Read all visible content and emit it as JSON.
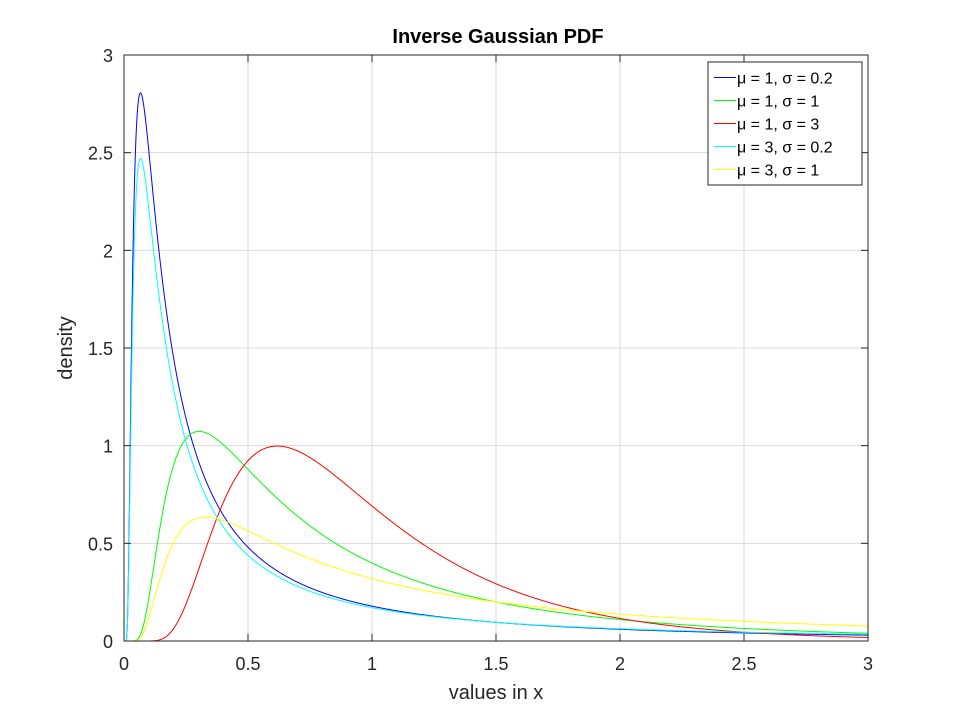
{
  "chart_data": {
    "type": "line",
    "title": "Inverse Gaussian PDF",
    "xlabel": "values in x",
    "ylabel": "density",
    "xlim": [
      0,
      3
    ],
    "ylim": [
      0,
      3
    ],
    "xticks": [
      0,
      0.5,
      1,
      1.5,
      2,
      2.5,
      3
    ],
    "xtick_labels": [
      "0",
      "0.5",
      "1",
      "1.5",
      "2",
      "2.5",
      "3"
    ],
    "yticks": [
      0,
      0.5,
      1,
      1.5,
      2,
      2.5,
      3
    ],
    "ytick_labels": [
      "0",
      "0.5",
      "1",
      "1.5",
      "2",
      "2.5",
      "3"
    ],
    "grid": true,
    "legend_position": "top-right",
    "series": [
      {
        "name": "μ = 1, σ = 0.2",
        "color": "#0000ff",
        "mu": 1,
        "lambda": 0.2
      },
      {
        "name": "μ = 1, σ = 1",
        "color": "#00ff00",
        "mu": 1,
        "lambda": 1
      },
      {
        "name": "μ = 1, σ = 3",
        "color": "#ff0000",
        "mu": 1,
        "lambda": 3
      },
      {
        "name": "μ = 3, σ = 0.2",
        "color": "#00ffff",
        "mu": 3,
        "lambda": 0.2
      },
      {
        "name": "μ = 3, σ = 1",
        "color": "#ffff00",
        "mu": 3,
        "lambda": 1
      }
    ]
  }
}
